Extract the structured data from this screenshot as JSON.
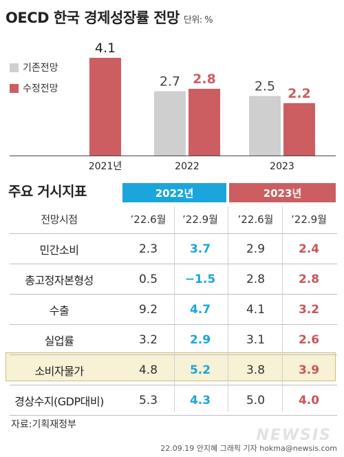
{
  "header": {
    "title": "OECD 한국 경제성장률 전망",
    "unit": "단위: %"
  },
  "legend": [
    {
      "label": "기존전망",
      "color": "#cfcfcf"
    },
    {
      "label": "수정전망",
      "color": "#cc5e62"
    }
  ],
  "chart_data": {
    "type": "bar",
    "categories": [
      "2021년",
      "2022",
      "2023"
    ],
    "series": [
      {
        "name": "기존전망",
        "values": [
          null,
          2.7,
          2.5
        ],
        "color": "#cfcfcf"
      },
      {
        "name": "수정전망",
        "values": [
          4.1,
          2.8,
          2.2
        ],
        "color": "#cc5e62"
      }
    ],
    "value_labels": [
      {
        "category": "2021년",
        "series": "수정전망",
        "text": "4.1"
      },
      {
        "category": "2022",
        "series": "기존전망",
        "text": "2.7"
      },
      {
        "category": "2022",
        "series": "수정전망",
        "text": "2.8"
      },
      {
        "category": "2023",
        "series": "기존전망",
        "text": "2.5"
      },
      {
        "category": "2023",
        "series": "수정전망",
        "text": "2.2"
      }
    ],
    "ylim": [
      0,
      4.1
    ],
    "grid": false,
    "legend_position": "top-left"
  },
  "table": {
    "title": "주요 거시지표",
    "year_headers": [
      {
        "label": "2022년",
        "color": "#1aa6dc"
      },
      {
        "label": "2023년",
        "color": "#cc5e62"
      }
    ],
    "subheader": {
      "label": "전망시점",
      "cols": [
        "’22.6월",
        "’22.9월",
        "’22.6월",
        "’22.9월"
      ]
    },
    "rows": [
      {
        "label": "민간소비",
        "values": [
          "2.3",
          "3.7",
          "2.9",
          "2.4"
        ]
      },
      {
        "label": "총고정자본형성",
        "values": [
          "0.5",
          "−1.5",
          "2.8",
          "2.8"
        ]
      },
      {
        "label": "수출",
        "values": [
          "9.2",
          "4.7",
          "4.1",
          "3.2"
        ]
      },
      {
        "label": "실업률",
        "values": [
          "3.2",
          "2.9",
          "3.1",
          "2.6"
        ]
      },
      {
        "label": "소비자물가",
        "values": [
          "4.8",
          "5.2",
          "3.8",
          "3.9"
        ],
        "highlight": true
      },
      {
        "label": "경상수지(GDP대비)",
        "values": [
          "5.3",
          "4.3",
          "5.0",
          "4.0"
        ]
      }
    ]
  },
  "footer": {
    "source": "자료:기획재정부",
    "credit": "22.09.19 안지혜 그래픽 기자 hokma@newsis.com",
    "watermark": "NEWSIS"
  }
}
